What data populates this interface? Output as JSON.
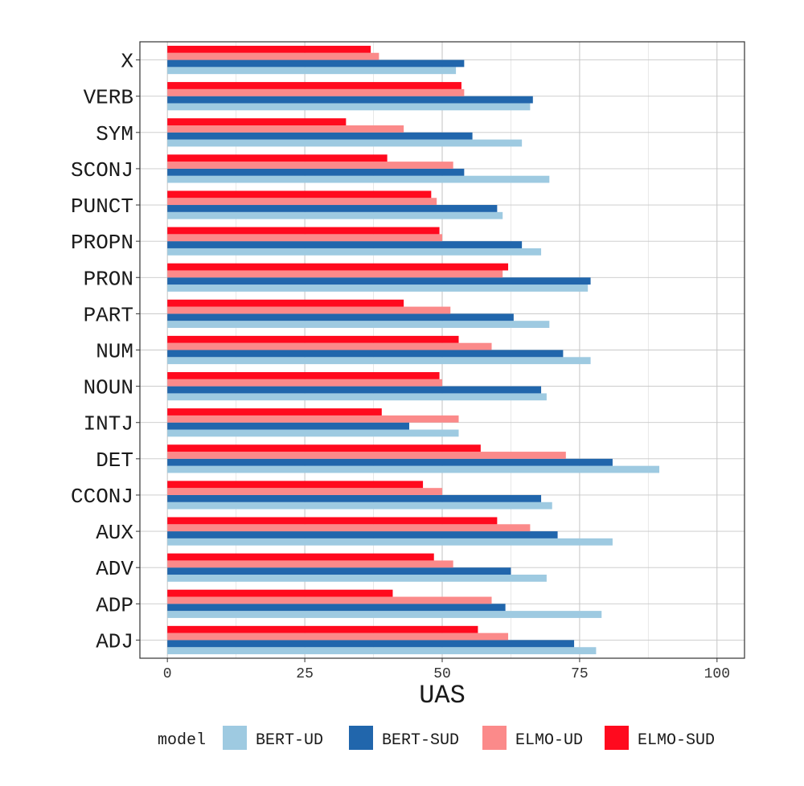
{
  "chart_data": {
    "type": "bar",
    "orientation": "horizontal",
    "categories": [
      "ADJ",
      "ADP",
      "ADV",
      "AUX",
      "CCONJ",
      "DET",
      "INTJ",
      "NOUN",
      "NUM",
      "PART",
      "PRON",
      "PROPN",
      "PUNCT",
      "SCONJ",
      "SYM",
      "VERB",
      "X"
    ],
    "series": [
      {
        "name": "BERT-UD",
        "color": "#9ecae1",
        "values": [
          78,
          79,
          69,
          81,
          70,
          89.5,
          53,
          69,
          77,
          69.5,
          76.5,
          68,
          61,
          69.5,
          64.5,
          66,
          52.5
        ]
      },
      {
        "name": "BERT-SUD",
        "color": "#2166ac",
        "values": [
          74,
          61.5,
          62.5,
          71,
          68,
          81,
          44,
          68,
          72,
          63,
          77,
          64.5,
          60,
          54,
          55.5,
          66.5,
          54
        ]
      },
      {
        "name": "ELMO-UD",
        "color": "#fb8a8a",
        "values": [
          62,
          59,
          52,
          66,
          50,
          72.5,
          53,
          50,
          59,
          51.5,
          61,
          50,
          49,
          52,
          43,
          54,
          38.5
        ]
      },
      {
        "name": "ELMO-SUD",
        "color": "#ff0a1e",
        "values": [
          56.5,
          41,
          48.5,
          60,
          46.5,
          57,
          39,
          49.5,
          53,
          43,
          62,
          49.5,
          48,
          40,
          32.5,
          53.5,
          37
        ]
      }
    ],
    "xlabel": "UAS",
    "ylabel": "",
    "xlim": [
      -5,
      105
    ],
    "xticks": [
      0,
      25,
      50,
      75,
      100
    ],
    "xtick_labels": [
      "0",
      "25",
      "50",
      "75",
      "100"
    ],
    "grid": true,
    "legend_title": "model",
    "legend_placement": "bottom"
  }
}
